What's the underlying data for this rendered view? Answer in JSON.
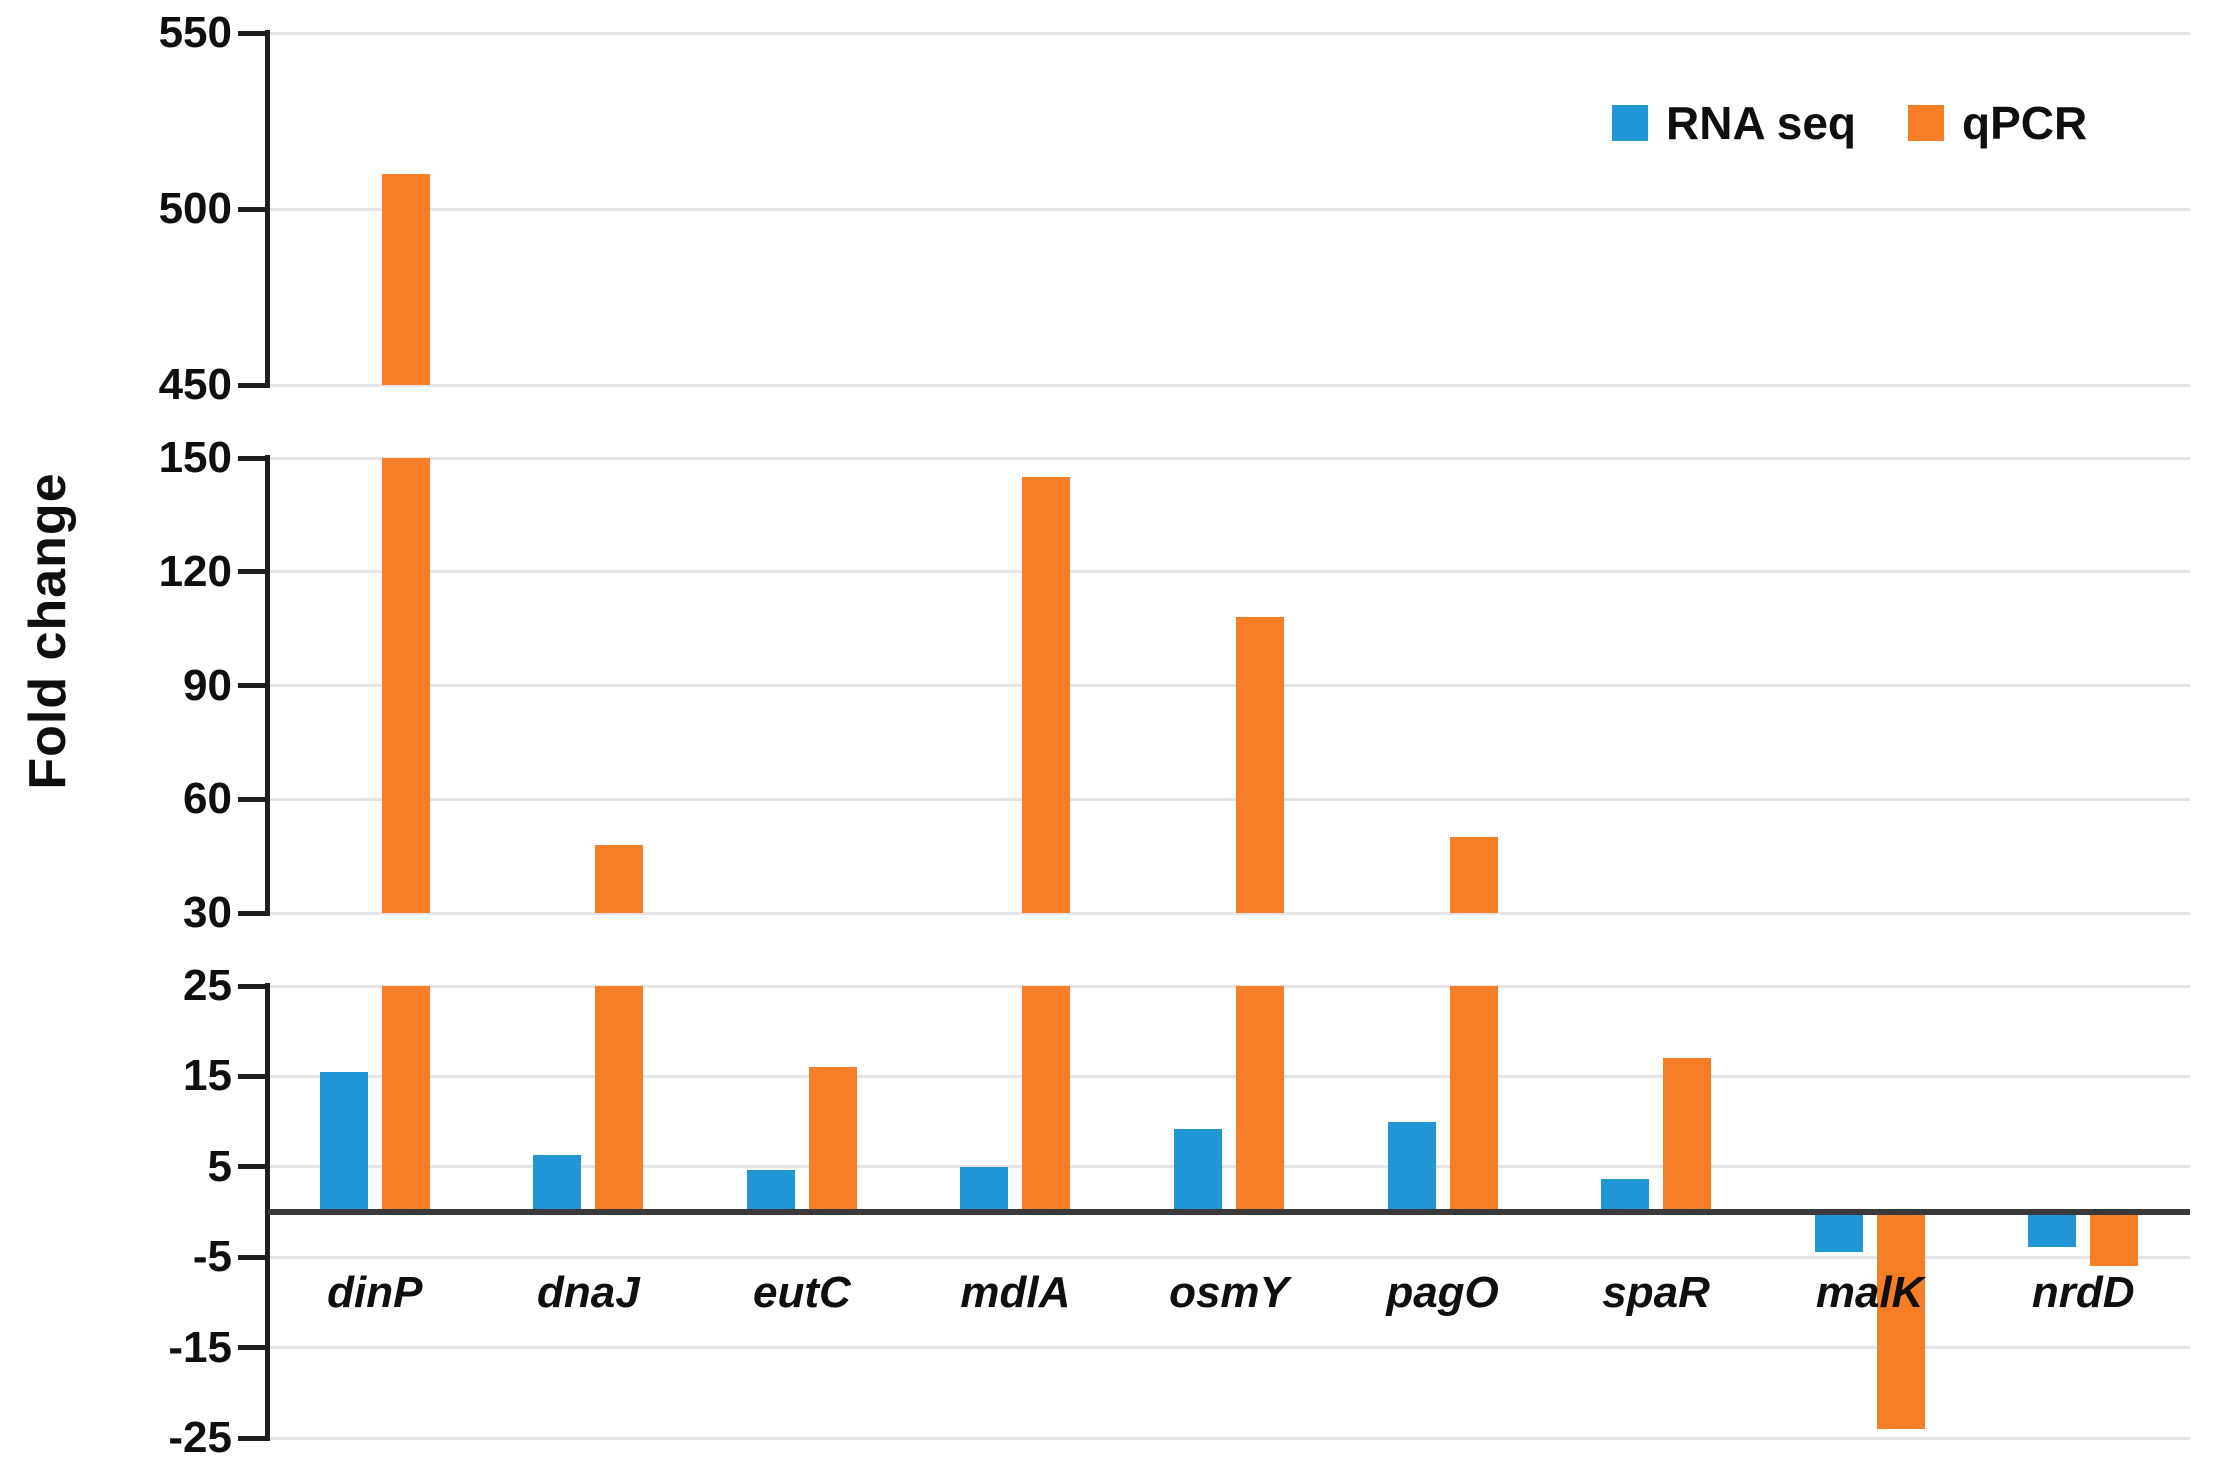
{
  "chart_data": {
    "type": "bar",
    "ylabel": "Fold change",
    "xlabel": "",
    "categories": [
      "dinP",
      "dnaJ",
      "eutC",
      "mdlA",
      "osmY",
      "pagO",
      "spaR",
      "malK",
      "nrdD"
    ],
    "series": [
      {
        "name": "RNA seq",
        "color": "#2196D5",
        "values": [
          15.5,
          6.3,
          4.7,
          5,
          9.2,
          10,
          3.7,
          -4.4,
          -3.9
        ]
      },
      {
        "name": "qPCR",
        "color": "#F57E26",
        "values": [
          510,
          48,
          16,
          145,
          108,
          50,
          17,
          -24,
          -6
        ]
      }
    ],
    "axis_segments": [
      {
        "min": 450,
        "max": 550,
        "ticks": [
          550,
          500,
          450
        ]
      },
      {
        "min": 30,
        "max": 150,
        "ticks": [
          150,
          120,
          90,
          60,
          30
        ]
      },
      {
        "min": -25,
        "max": 25,
        "ticks": [
          25,
          15,
          5,
          -5,
          -15,
          -25
        ]
      }
    ],
    "broken_axis": true,
    "grid": true,
    "legend_position": "top-right",
    "colors": {
      "gridline": "#E4E4E8",
      "zero_line": "#3A3A3A",
      "axis": "#1F1F1F",
      "text": "#0F0F0F",
      "background": "#FFFFFF"
    }
  }
}
